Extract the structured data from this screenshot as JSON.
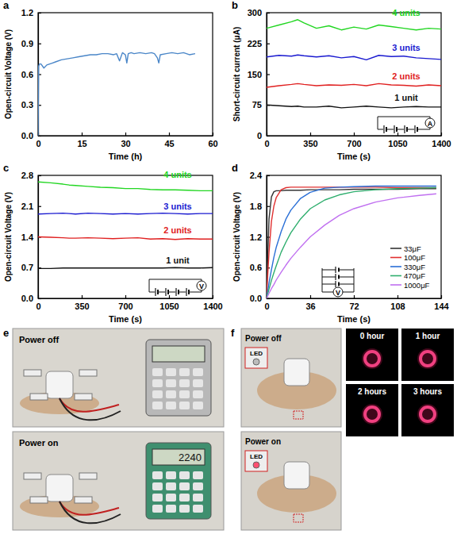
{
  "chart_data": [
    {
      "type": "line",
      "panel": "a",
      "x_label": "Time (h)",
      "y_label": "Open-circuit Voltage (V)",
      "x": [
        0,
        0.2,
        0.5,
        1,
        2,
        3,
        4,
        5,
        6,
        8,
        10,
        12,
        14,
        16,
        18,
        20,
        22,
        24,
        26,
        27,
        28,
        29,
        30,
        30.5,
        31,
        32,
        33,
        35,
        37,
        39,
        40,
        41,
        41.5,
        42,
        44,
        46,
        48,
        50,
        52,
        54
      ],
      "values": [
        0,
        0.68,
        0.7,
        0.7,
        0.66,
        0.69,
        0.7,
        0.71,
        0.72,
        0.74,
        0.75,
        0.76,
        0.77,
        0.78,
        0.79,
        0.79,
        0.8,
        0.8,
        0.79,
        0.8,
        0.73,
        0.81,
        0.79,
        0.71,
        0.8,
        0.81,
        0.8,
        0.81,
        0.8,
        0.81,
        0.8,
        0.76,
        0.71,
        0.79,
        0.8,
        0.81,
        0.8,
        0.81,
        0.79,
        0.8
      ],
      "color": "#4a86c8",
      "xlim": [
        0,
        60
      ],
      "xticks": [
        0,
        15,
        30,
        45,
        60
      ],
      "ylim": [
        0,
        1.2
      ],
      "yticks": [
        {
          "value": 0,
          "label": "0.0"
        },
        0.3,
        0.6,
        0.9,
        1.2
      ]
    },
    {
      "type": "line",
      "panel": "b",
      "x_label": "Time (s)",
      "y_label": "Short-circuit current (μA)",
      "annotations": [
        "A"
      ],
      "x": [
        0,
        100,
        200,
        250,
        300,
        400,
        500,
        600,
        700,
        800,
        900,
        1000,
        1100,
        1200,
        1300,
        1400
      ],
      "series": [
        {
          "name": "4 units",
          "color": "#22d622",
          "values": [
            262,
            270,
            278,
            283,
            275,
            262,
            268,
            258,
            265,
            260,
            270,
            266,
            262,
            258,
            262,
            260
          ]
        },
        {
          "name": "3 units",
          "color": "#1a1ad0",
          "values": [
            192,
            196,
            194,
            197,
            195,
            192,
            195,
            190,
            193,
            185,
            196,
            193,
            194,
            190,
            188,
            186
          ]
        },
        {
          "name": "2 units",
          "color": "#e02020",
          "values": [
            118,
            122,
            125,
            127,
            125,
            122,
            124,
            123,
            125,
            122,
            127,
            124,
            123,
            121,
            124,
            122
          ]
        },
        {
          "name": "1 unit",
          "color": "#111111",
          "values": [
            75,
            73,
            71,
            72,
            70,
            70,
            72,
            68,
            70,
            72,
            70,
            68,
            70,
            71,
            70,
            70
          ]
        }
      ],
      "xlim": [
        0,
        1400
      ],
      "xticks": [
        0,
        350,
        700,
        1050,
        1400
      ],
      "ylim": [
        0,
        300
      ],
      "yticks": [
        0,
        75,
        150,
        225,
        300
      ]
    },
    {
      "type": "line",
      "panel": "c",
      "x_label": "Time (s)",
      "y_label": "Open-circuit Voltage (V)",
      "annotations": [
        "V"
      ],
      "x": [
        0,
        100,
        200,
        250,
        300,
        400,
        500,
        600,
        700,
        800,
        900,
        1000,
        1100,
        1200,
        1300,
        1400
      ],
      "series": [
        {
          "name": "4 units",
          "color": "#22d622",
          "values": [
            2.65,
            2.63,
            2.6,
            2.58,
            2.57,
            2.55,
            2.53,
            2.52,
            2.5,
            2.5,
            2.48,
            2.47,
            2.47,
            2.46,
            2.45,
            2.45
          ]
        },
        {
          "name": "3 units",
          "color": "#1a1ad0",
          "values": [
            1.92,
            1.93,
            1.94,
            1.93,
            1.92,
            1.94,
            1.93,
            1.92,
            1.93,
            1.92,
            1.93,
            1.94,
            1.93,
            1.92,
            1.93,
            1.93
          ]
        },
        {
          "name": "2 units",
          "color": "#e02020",
          "values": [
            1.4,
            1.39,
            1.38,
            1.37,
            1.37,
            1.38,
            1.37,
            1.36,
            1.37,
            1.38,
            1.35,
            1.36,
            1.34,
            1.36,
            1.35,
            1.35
          ]
        },
        {
          "name": "1 unit",
          "color": "#111111",
          "values": [
            0.68,
            0.68,
            0.69,
            0.69,
            0.69,
            0.69,
            0.69,
            0.69,
            0.69,
            0.69,
            0.69,
            0.69,
            0.7,
            0.69,
            0.69,
            0.7
          ]
        }
      ],
      "xlim": [
        0,
        1400
      ],
      "xticks": [
        0,
        350,
        700,
        1050,
        1400
      ],
      "ylim": [
        0,
        2.8
      ],
      "yticks": [
        {
          "value": 0,
          "label": "0.0"
        },
        0.7,
        1.4,
        2.1,
        2.8
      ]
    },
    {
      "type": "line",
      "panel": "d",
      "x_label": "Time (s)",
      "y_label": "Open-circuit Voltage (V)",
      "annotations": [
        "V"
      ],
      "legend": "lower right",
      "x": [
        0,
        2,
        4,
        6,
        8,
        12,
        16,
        20,
        28,
        36,
        48,
        60,
        72,
        90,
        108,
        126,
        140
      ],
      "series": [
        {
          "name": "33μF",
          "color": "#333333",
          "values": [
            0.1,
            1.55,
            1.98,
            2.08,
            2.1,
            2.1,
            2.11,
            2.11,
            2.11,
            2.12,
            2.12,
            2.12,
            2.13,
            2.13,
            2.13,
            2.14,
            2.14
          ]
        },
        {
          "name": "100μF",
          "color": "#e03030",
          "values": [
            0.05,
            0.9,
            1.5,
            1.8,
            1.97,
            2.12,
            2.16,
            2.17,
            2.17,
            2.17,
            2.17,
            2.17,
            2.17,
            2.17,
            2.16,
            2.16,
            2.16
          ]
        },
        {
          "name": "330μF",
          "color": "#2a6fd6",
          "values": [
            0.0,
            0.3,
            0.56,
            0.8,
            1.0,
            1.3,
            1.55,
            1.72,
            1.95,
            2.07,
            2.15,
            2.17,
            2.18,
            2.19,
            2.19,
            2.19,
            2.19
          ]
        },
        {
          "name": "470μF",
          "color": "#2fae6e",
          "values": [
            0.0,
            0.18,
            0.35,
            0.5,
            0.64,
            0.9,
            1.1,
            1.28,
            1.55,
            1.75,
            1.92,
            2.02,
            2.08,
            2.12,
            2.14,
            2.15,
            2.16
          ]
        },
        {
          "name": "1000μF",
          "color": "#c070f0",
          "values": [
            0.0,
            0.1,
            0.19,
            0.27,
            0.36,
            0.51,
            0.65,
            0.78,
            1.0,
            1.2,
            1.43,
            1.62,
            1.75,
            1.88,
            1.96,
            2.01,
            2.04
          ]
        }
      ],
      "xlim": [
        0,
        144
      ],
      "xticks": [
        0,
        36,
        72,
        108,
        144
      ],
      "ylim": [
        0,
        2.4
      ],
      "yticks": [
        {
          "value": 0,
          "label": "0.0"
        },
        0.6,
        1.2,
        1.8,
        2.4
      ]
    }
  ],
  "figure_panels": [
    {
      "panel": "e",
      "photos": [
        {
          "label": "Power off"
        },
        {
          "label": "Power on",
          "display": "2240"
        }
      ]
    },
    {
      "panel": "f",
      "photos": [
        {
          "label": "Power off",
          "inset": "LED"
        },
        {
          "label": "Power on",
          "inset": "LED"
        }
      ],
      "led_images": [
        "0 hour",
        "1 hour",
        "2 hours",
        "3 hours"
      ]
    }
  ]
}
